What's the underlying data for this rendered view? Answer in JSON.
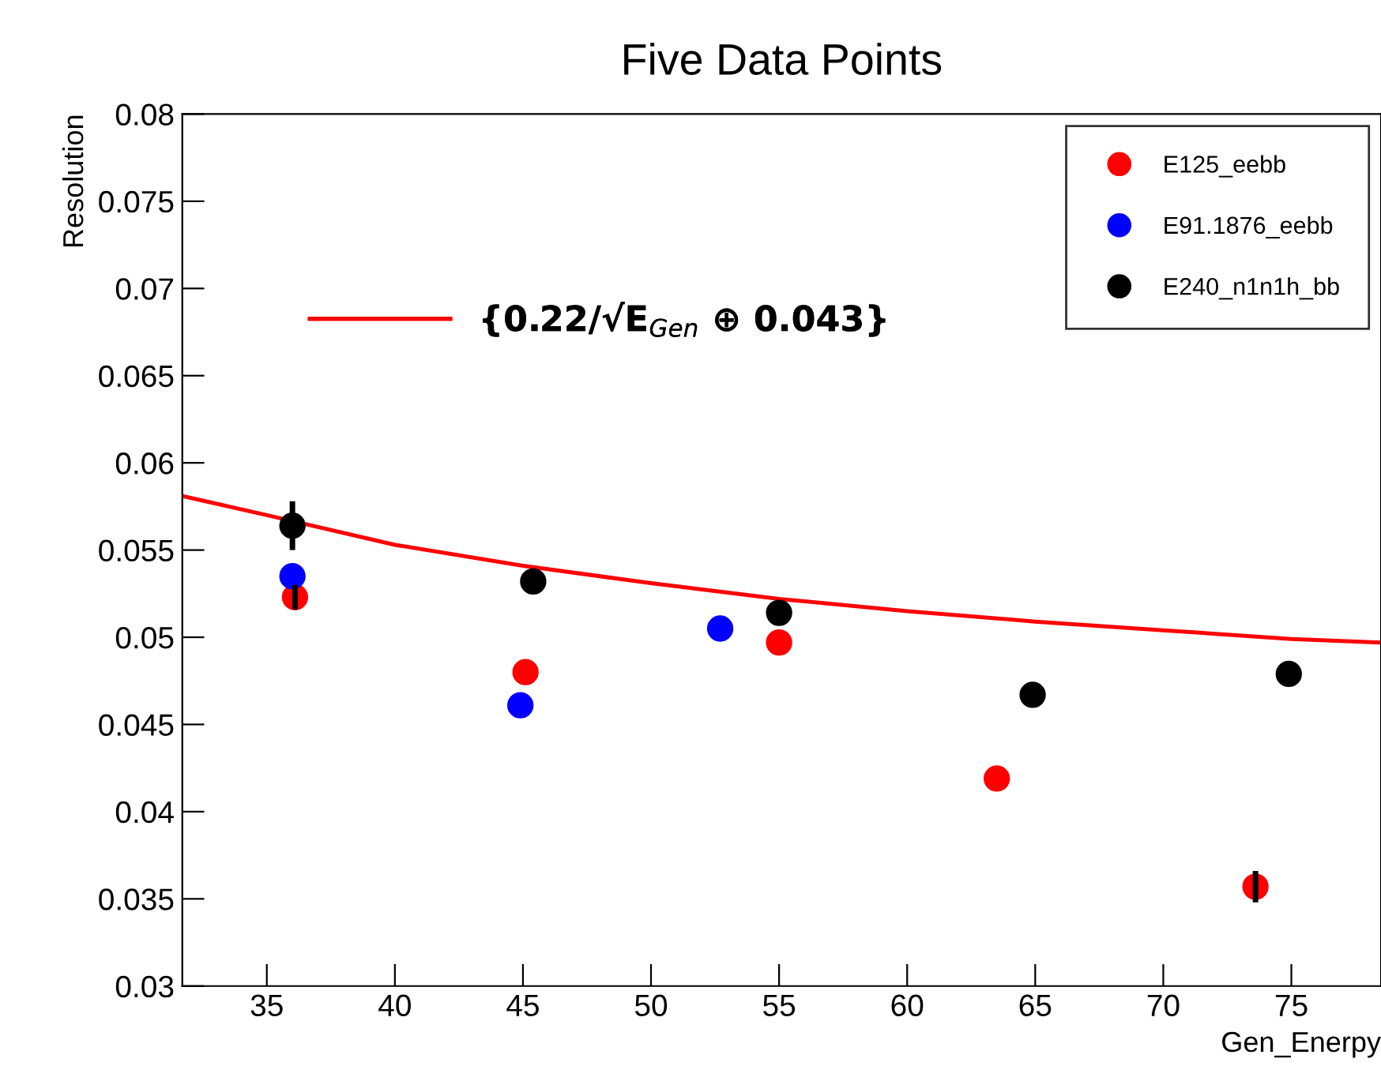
{
  "chart_data": {
    "type": "scatter",
    "title": "Five Data Points",
    "xlabel": "Gen_Enerpy",
    "ylabel": "Resolution",
    "xlim": [
      31.7,
      78.5
    ],
    "xticks": [
      35,
      40,
      45,
      50,
      55,
      60,
      65,
      70,
      75
    ],
    "ylim": [
      0.03,
      0.08
    ],
    "yticks": [
      0.03,
      0.035,
      0.04,
      0.045,
      0.05,
      0.055,
      0.06,
      0.065,
      0.07,
      0.075,
      0.08
    ],
    "marker": "circle",
    "grid": false,
    "legend": "top right",
    "series": [
      {
        "name": "E125_eebb",
        "color": "#ff0000",
        "x": [
          36.1,
          45.1,
          55.0,
          63.5,
          73.6
        ],
        "values": [
          0.0523,
          0.048,
          0.0497,
          0.0419,
          0.0357
        ],
        "errors": [
          0.0007,
          null,
          null,
          null,
          0.0009
        ]
      },
      {
        "name": "E91.1876_eebb",
        "color": "#0000ff",
        "x": [
          36.0,
          44.9,
          52.7
        ],
        "values": [
          0.0535,
          0.0461,
          0.0505
        ],
        "errors": [
          null,
          null,
          null
        ]
      },
      {
        "name": "E240_n1n1h_bb",
        "color": "#000000",
        "x": [
          36.0,
          45.4,
          55.0,
          64.9,
          74.9
        ],
        "values": [
          0.0564,
          0.0532,
          0.0514,
          0.0467,
          0.0479
        ],
        "errors": [
          0.0014,
          0.0007,
          null,
          0.0004,
          0.0005
        ]
      },
      {
        "name": "{0.22/√E$_{Gen}$ ⊕ 0.043}",
        "type": "line",
        "color": "#ff0000",
        "marker": "none",
        "x": [
          31.7,
          35,
          40,
          45,
          50,
          55,
          60,
          65,
          70,
          75,
          78.5
        ],
        "values": [
          0.0581,
          0.057,
          0.0553,
          0.0541,
          0.0531,
          0.0522,
          0.0515,
          0.0509,
          0.0504,
          0.0499,
          0.0497
        ]
      }
    ]
  }
}
